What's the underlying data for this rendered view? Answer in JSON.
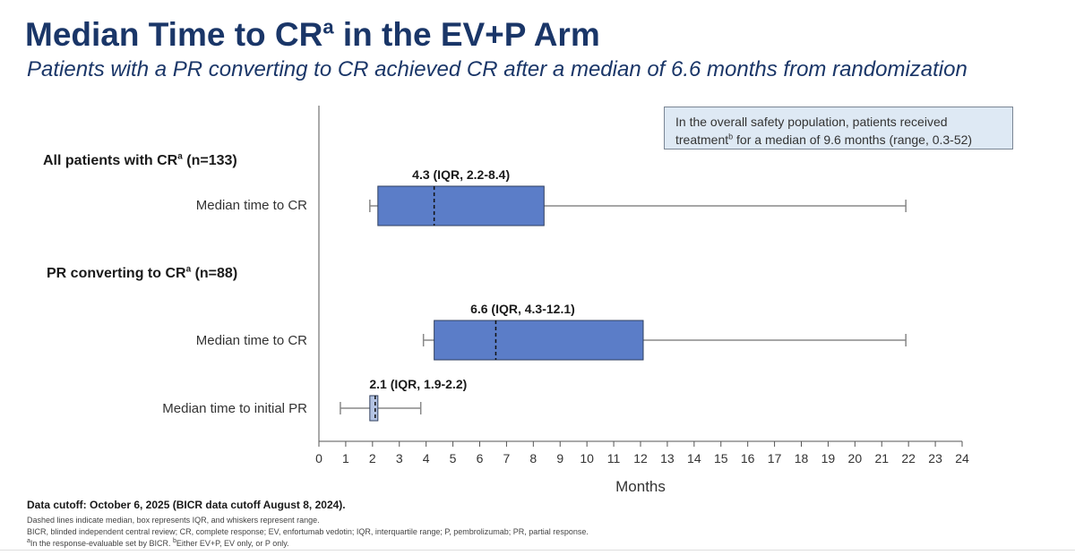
{
  "title": {
    "text": "Median Time to CR",
    "sup": "a",
    "rest": " in the EV+P Arm"
  },
  "subtitle": "Patients with a PR converting to CR achieved CR after a median of 6.6 months from randomization",
  "infobox": {
    "line1": "In the overall safety population, patients received",
    "line2_pre": "treatment",
    "line2_sup": "b",
    "line2_post": " for a median of 9.6 months (range, 0.3-52)"
  },
  "groups": [
    {
      "text": "All patients with CR",
      "sup": "a",
      "suffix": " (n=133)"
    },
    {
      "text": "PR converting to CR",
      "sup": "a",
      "suffix": " (n=88)"
    }
  ],
  "rows": [
    {
      "label": "Median time to CR"
    },
    {
      "label": "Median time to CR"
    },
    {
      "label": "Median time to initial PR"
    }
  ],
  "chart_data": {
    "type": "box",
    "xlabel": "Months",
    "xlim": [
      0,
      24
    ],
    "xticks": [
      0,
      1,
      2,
      3,
      4,
      5,
      6,
      7,
      8,
      9,
      10,
      11,
      12,
      13,
      14,
      15,
      16,
      17,
      18,
      19,
      20,
      21,
      22,
      23,
      24
    ],
    "grid": false,
    "boxes": [
      {
        "group": "All patients with CR (n=133)",
        "label": "Median time to CR",
        "min": 1.9,
        "q1": 2.2,
        "median": 4.3,
        "q3": 8.4,
        "max": 21.9,
        "annotation": "4.3 (IQR, 2.2-8.4)",
        "color": "#5b7dc8"
      },
      {
        "group": "PR converting to CR (n=88)",
        "label": "Median time to CR",
        "min": 3.9,
        "q1": 4.3,
        "median": 6.6,
        "q3": 12.1,
        "max": 21.9,
        "annotation": "6.6 (IQR, 4.3-12.1)",
        "color": "#5b7dc8"
      },
      {
        "group": "PR converting to CR (n=88)",
        "label": "Median time to initial PR",
        "min": 0.8,
        "q1": 1.9,
        "median": 2.1,
        "q3": 2.2,
        "max": 3.8,
        "annotation": "2.1 (IQR, 1.9-2.2)",
        "color": "#b3c3e3"
      }
    ]
  },
  "footer": {
    "cutoff": "Data cutoff: October 6, 2025 (BICR data cutoff August 8, 2024).",
    "note1": "Dashed lines indicate median, box represents IQR, and whiskers represent range.",
    "note2": "BICR, blinded independent central review; CR, complete response; EV, enfortumab vedotin; IQR, interquartile range; P, pembrolizumab; PR, partial response.",
    "note3_sup_a": "a",
    "note3_a": "In the response-evaluable set by BICR. ",
    "note3_sup_b": "b",
    "note3_b": "Either EV+P, EV only, or P only."
  },
  "colors": {
    "title": "#1a3668",
    "box": "#5b7dc8",
    "box_light": "#b3c3e3",
    "whisker": "#888888",
    "infobox_bg": "#dee9f4"
  }
}
